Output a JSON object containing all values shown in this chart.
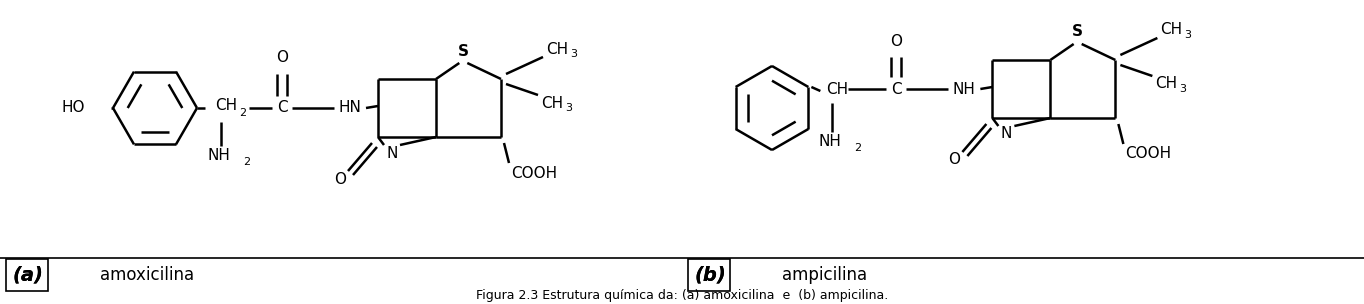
{
  "background_color": "#ffffff",
  "caption_a": "(a)",
  "caption_b": "(b)",
  "label_a": "amoxicilina",
  "label_b": "ampicilina",
  "figsize": [
    13.64,
    3.04
  ],
  "dpi": 100
}
